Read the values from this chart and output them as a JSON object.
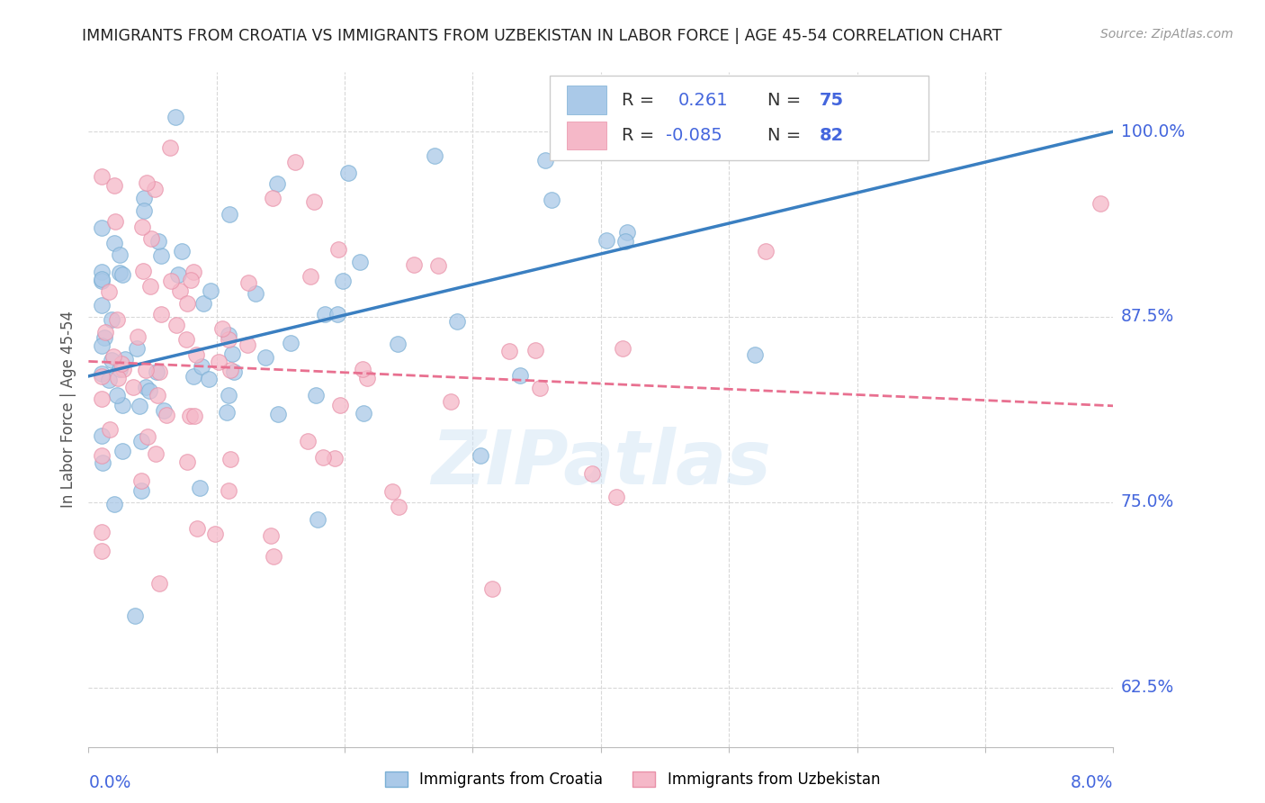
{
  "title": "IMMIGRANTS FROM CROATIA VS IMMIGRANTS FROM UZBEKISTAN IN LABOR FORCE | AGE 45-54 CORRELATION CHART",
  "source": "Source: ZipAtlas.com",
  "ylabel": "In Labor Force | Age 45-54",
  "ytick_labels": [
    "62.5%",
    "75.0%",
    "87.5%",
    "100.0%"
  ],
  "ytick_values": [
    0.625,
    0.75,
    0.875,
    1.0
  ],
  "xmin": 0.0,
  "xmax": 0.08,
  "ymin": 0.585,
  "ymax": 1.04,
  "croatia_color": "#aac9e8",
  "croatia_color_edge": "#7aafd4",
  "uzbekistan_color": "#f5b8c8",
  "uzbekistan_color_edge": "#e890a8",
  "croatia_line_color": "#3a7fc1",
  "uzbekistan_line_color": "#e87090",
  "legend_R_croatia": "0.261",
  "legend_N_croatia": "75",
  "legend_R_uzbekistan": "-0.085",
  "legend_N_uzbekistan": "82",
  "watermark_text": "ZIPatlas",
  "background_color": "#ffffff",
  "grid_color": "#d8d8d8",
  "tick_label_color": "#4466dd",
  "title_color": "#222222",
  "legend_text_color": "#4466dd"
}
